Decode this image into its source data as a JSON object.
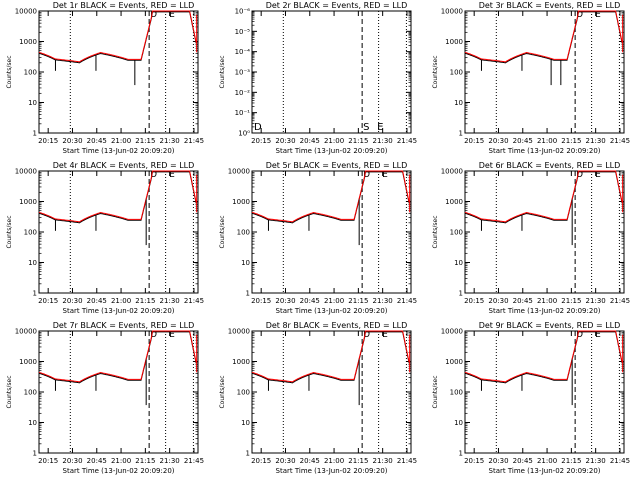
{
  "chart_data": [
    {
      "type": "line",
      "title": "Det 1r  BLACK = Events, RED = LLD",
      "xlabel": "Start Time (13-Jun-02 20:09:20)",
      "ylabel": "Counts/sec",
      "scale": "log",
      "ylim": [
        1,
        12000
      ],
      "xlim": [
        "20:09:20",
        "21:47:30"
      ],
      "xticks": [
        "20:15",
        "20:30",
        "20:45",
        "21:00",
        "21:15",
        "21:30",
        "21:45"
      ],
      "yticks": [
        "1",
        "10",
        "100",
        "1000",
        "10000"
      ],
      "markers": [
        "D",
        "S",
        "E"
      ],
      "series": [
        {
          "name": "Events",
          "color": "#000000"
        },
        {
          "name": "LLD",
          "color": "#ff0000"
        }
      ],
      "dips": [
        "21:08:30"
      ]
    },
    {
      "type": "line",
      "title": "Det 2r  BLACK = Events, RED = LLD",
      "xlabel": "Start Time (13-Jun-02 20:09:20)",
      "ylabel": "Counts/sec",
      "scale": "log",
      "ylim": [
        1,
        1e-06
      ],
      "xlim": [
        "20:09:20",
        "21:47:30"
      ],
      "xticks": [
        "20:15",
        "20:30",
        "20:45",
        "21:00",
        "21:15",
        "21:30",
        "21:45"
      ],
      "yticks": [
        "10⁰",
        "10⁻¹",
        "10⁻²",
        "10⁻³",
        "10⁻⁴",
        "10⁻⁵",
        "10⁻⁶"
      ],
      "markers": [
        "D",
        "S",
        "E"
      ],
      "series": []
    },
    {
      "type": "line",
      "title": "Det 3r  BLACK = Events, RED = LLD",
      "xlabel": "Start Time (13-Jun-02 20:09:20)",
      "ylabel": "Counts/sec",
      "scale": "log",
      "ylim": [
        1,
        12000
      ],
      "xlim": [
        "20:09:20",
        "21:47:30"
      ],
      "xticks": [
        "20:15",
        "20:30",
        "20:45",
        "21:00",
        "21:15",
        "21:30",
        "21:45"
      ],
      "yticks": [
        "1",
        "10",
        "100",
        "1000",
        "10000"
      ],
      "markers": [
        "D",
        "S",
        "E"
      ],
      "series": [
        {
          "name": "Events",
          "color": "#000000"
        },
        {
          "name": "LLD",
          "color": "#ff0000"
        }
      ],
      "dips": [
        "21:02:30",
        "21:08:30"
      ]
    },
    {
      "type": "line",
      "title": "Det 4r  BLACK = Events, RED = LLD",
      "xlabel": "Start Time (13-Jun-02 20:09:20)",
      "ylabel": "Counts/sec",
      "scale": "log",
      "ylim": [
        1,
        12000
      ],
      "xlim": [
        "20:09:20",
        "21:47:30"
      ],
      "xticks": [
        "20:15",
        "20:30",
        "20:45",
        "21:00",
        "21:15",
        "21:30",
        "21:45"
      ],
      "yticks": [
        "1",
        "10",
        "100",
        "1000",
        "10000"
      ],
      "markers": [
        "D",
        "S",
        "E"
      ],
      "series": [
        {
          "name": "Events",
          "color": "#000000"
        },
        {
          "name": "LLD",
          "color": "#ff0000"
        }
      ],
      "dips": [
        "21:15:30"
      ]
    },
    {
      "type": "line",
      "title": "Det 5r  BLACK = Events, RED = LLD",
      "xlabel": "Start Time (13-Jun-02 20:09:20)",
      "ylabel": "Counts/sec",
      "scale": "log",
      "ylim": [
        1,
        12000
      ],
      "xlim": [
        "20:09:20",
        "21:47:30"
      ],
      "xticks": [
        "20:15",
        "20:30",
        "20:45",
        "21:00",
        "21:15",
        "21:30",
        "21:45"
      ],
      "yticks": [
        "1",
        "10",
        "100",
        "1000",
        "10000"
      ],
      "markers": [
        "D",
        "S",
        "E"
      ],
      "series": [
        {
          "name": "Events",
          "color": "#000000"
        },
        {
          "name": "LLD",
          "color": "#ff0000"
        }
      ],
      "dips": [
        "21:15:30"
      ]
    },
    {
      "type": "line",
      "title": "Det 6r  BLACK = Events, RED = LLD",
      "xlabel": "Start Time (13-Jun-02 20:09:20)",
      "ylabel": "Counts/sec",
      "scale": "log",
      "ylim": [
        1,
        12000
      ],
      "xlim": [
        "20:09:20",
        "21:47:30"
      ],
      "xticks": [
        "20:15",
        "20:30",
        "20:45",
        "21:00",
        "21:15",
        "21:30",
        "21:45"
      ],
      "yticks": [
        "1",
        "10",
        "100",
        "1000",
        "10000"
      ],
      "markers": [
        "D",
        "S",
        "E"
      ],
      "series": [
        {
          "name": "Events",
          "color": "#000000"
        },
        {
          "name": "LLD",
          "color": "#ff0000"
        }
      ],
      "dips": [
        "21:15:30"
      ]
    },
    {
      "type": "line",
      "title": "Det 7r  BLACK = Events, RED = LLD",
      "xlabel": "Start Time (13-Jun-02 20:09:20)",
      "ylabel": "Counts/sec",
      "scale": "log",
      "ylim": [
        1,
        12000
      ],
      "xlim": [
        "20:09:20",
        "21:47:30"
      ],
      "xticks": [
        "20:15",
        "20:30",
        "20:45",
        "21:00",
        "21:15",
        "21:30",
        "21:45"
      ],
      "yticks": [
        "1",
        "10",
        "100",
        "1000",
        "10000"
      ],
      "markers": [
        "D",
        "S",
        "E"
      ],
      "series": [
        {
          "name": "Events",
          "color": "#000000"
        },
        {
          "name": "LLD",
          "color": "#ff0000"
        }
      ],
      "dips": [
        "21:15:30"
      ]
    },
    {
      "type": "line",
      "title": "Det 8r  BLACK = Events, RED = LLD",
      "xlabel": "Start Time (13-Jun-02 20:09:20)",
      "ylabel": "Counts/sec",
      "scale": "log",
      "ylim": [
        1,
        12000
      ],
      "xlim": [
        "20:09:20",
        "21:47:30"
      ],
      "xticks": [
        "20:15",
        "20:30",
        "20:45",
        "21:00",
        "21:15",
        "21:30",
        "21:45"
      ],
      "yticks": [
        "1",
        "10",
        "100",
        "1000",
        "10000"
      ],
      "markers": [
        "D",
        "S",
        "E"
      ],
      "series": [
        {
          "name": "Events",
          "color": "#000000"
        },
        {
          "name": "LLD",
          "color": "#ff0000"
        }
      ],
      "dips": [
        "21:15:30"
      ]
    },
    {
      "type": "line",
      "title": "Det 9r  BLACK = Events, RED = LLD",
      "xlabel": "Start Time (13-Jun-02 20:09:20)",
      "ylabel": "Counts/sec",
      "scale": "log",
      "ylim": [
        1,
        12000
      ],
      "xlim": [
        "20:09:20",
        "21:47:30"
      ],
      "xticks": [
        "20:15",
        "20:30",
        "20:45",
        "21:00",
        "21:15",
        "21:30",
        "21:45"
      ],
      "yticks": [
        "1",
        "10",
        "100",
        "1000",
        "10000"
      ],
      "markers": [
        "D",
        "S",
        "E"
      ],
      "series": [
        {
          "name": "Events",
          "color": "#000000"
        },
        {
          "name": "LLD",
          "color": "#ff0000"
        }
      ],
      "dips": [
        "21:15:30"
      ]
    }
  ]
}
